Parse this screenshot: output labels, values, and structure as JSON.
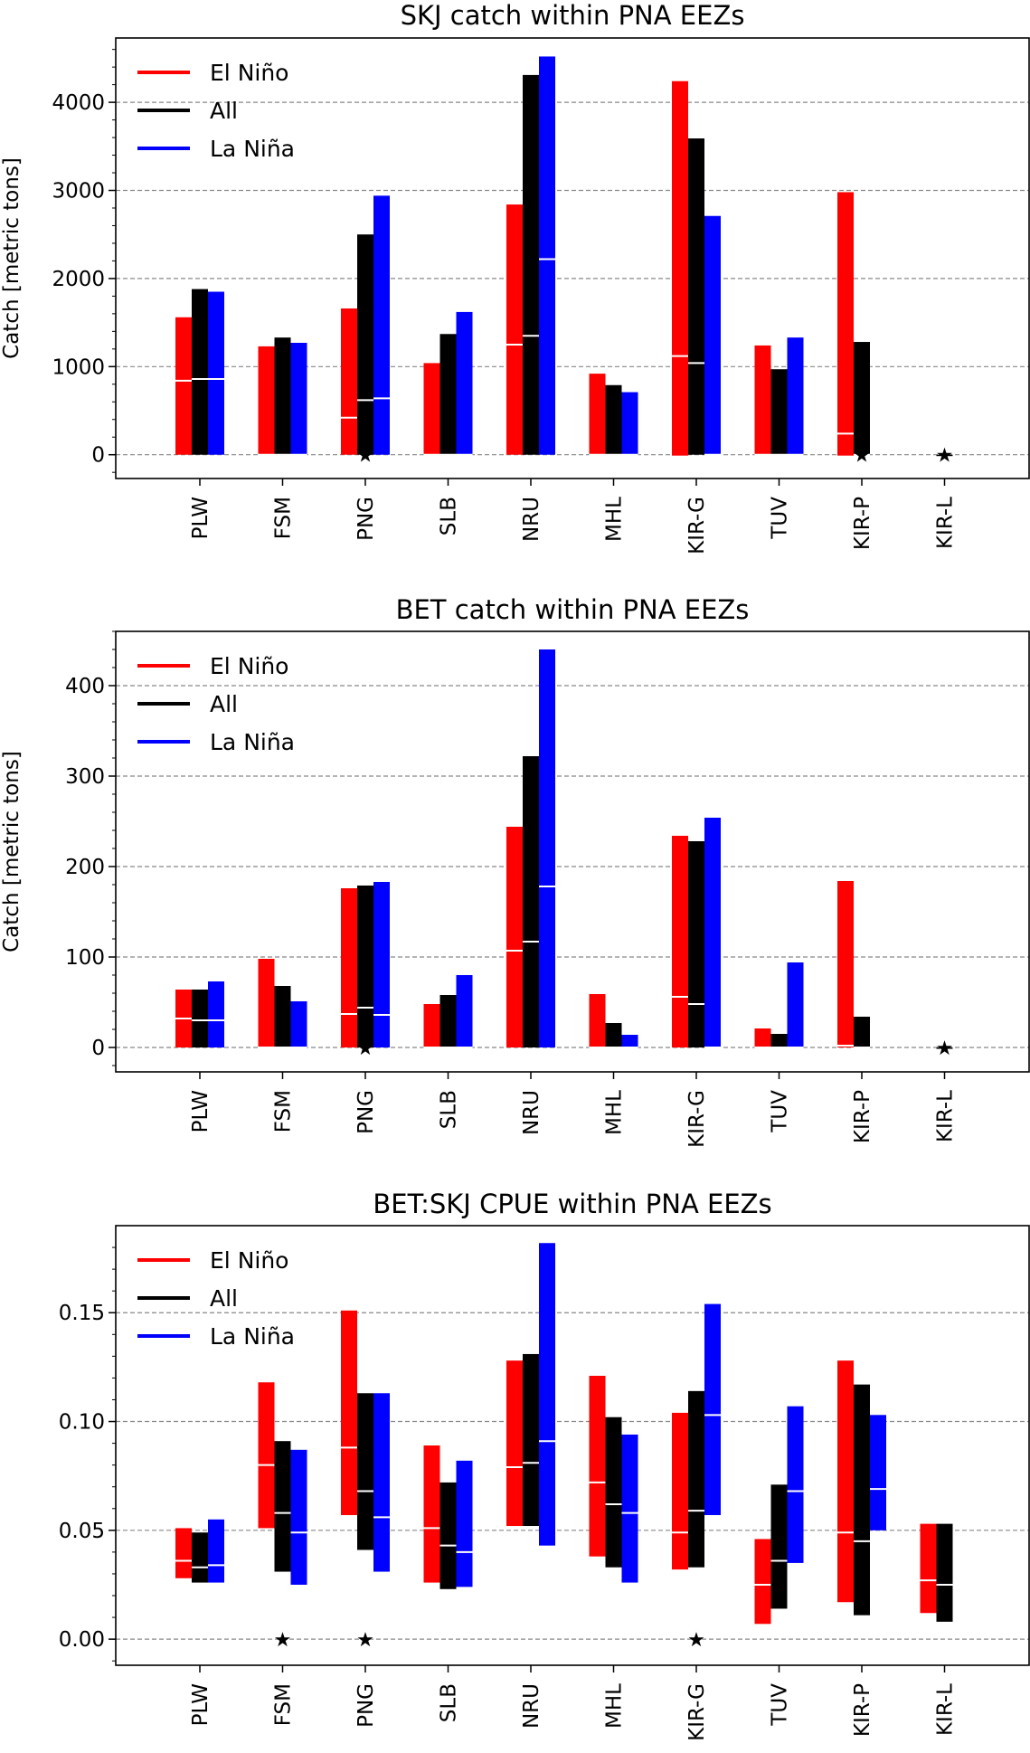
{
  "colors": {
    "elnino": "#ff0000",
    "all": "#000000",
    "lanina": "#0000ff"
  },
  "legend": [
    "El Niño",
    "All",
    "La Niña"
  ],
  "chart_data": [
    {
      "type": "bar",
      "title": "SKJ catch within PNA EEZs",
      "ylabel": "Catch [metric tons]",
      "ylim": [
        -270,
        4730
      ],
      "yticks": [
        0,
        1000,
        2000,
        3000,
        4000
      ],
      "grid": true,
      "legend_position": "upper-left",
      "categories": [
        "PLW",
        "FSM",
        "PNG",
        "SLB",
        "NRU",
        "MHL",
        "KIR-G",
        "TUV",
        "KIR-P",
        "KIR-L"
      ],
      "series": [
        {
          "name": "El Niño",
          "color": "#ff0000",
          "low": [
            0,
            0,
            0,
            0,
            0,
            0,
            -10,
            0,
            -10,
            null
          ],
          "high": [
            1560,
            1230,
            1660,
            1040,
            2840,
            920,
            4240,
            1240,
            2980,
            null
          ],
          "median": [
            840,
            0,
            420,
            0,
            1250,
            0,
            1120,
            0,
            240,
            null
          ]
        },
        {
          "name": "All",
          "color": "#000000",
          "low": [
            0,
            0,
            0,
            0,
            0,
            0,
            0,
            0,
            0,
            0
          ],
          "high": [
            1880,
            1330,
            2500,
            1370,
            4310,
            790,
            3590,
            970,
            1280,
            0
          ],
          "median": [
            860,
            0,
            620,
            0,
            1350,
            0,
            1040,
            0,
            0,
            0
          ]
        },
        {
          "name": "La Niña",
          "color": "#0000ff",
          "low": [
            0,
            0,
            0,
            0,
            0,
            0,
            0,
            0,
            null,
            null
          ],
          "high": [
            1850,
            1270,
            2940,
            1620,
            4520,
            710,
            2710,
            1330,
            null,
            null
          ],
          "median": [
            860,
            0,
            640,
            0,
            2220,
            0,
            0,
            0,
            null,
            null
          ]
        }
      ],
      "star_markers": [
        "PNG",
        "KIR-P",
        "KIR-L"
      ]
    },
    {
      "type": "bar",
      "title": "BET catch within PNA EEZs",
      "ylabel": "Catch [metric tons]",
      "ylim": [
        -27,
        460
      ],
      "yticks": [
        0,
        100,
        200,
        300,
        400
      ],
      "grid": true,
      "legend_position": "upper-left",
      "categories": [
        "PLW",
        "FSM",
        "PNG",
        "SLB",
        "NRU",
        "MHL",
        "KIR-G",
        "TUV",
        "KIR-P",
        "KIR-L"
      ],
      "series": [
        {
          "name": "El Niño",
          "color": "#ff0000",
          "low": [
            0,
            0,
            0,
            0,
            0,
            0,
            0,
            0,
            0,
            null
          ],
          "high": [
            64,
            98,
            176,
            48,
            244,
            59,
            234,
            21,
            184,
            null
          ],
          "median": [
            32,
            0,
            37,
            0,
            107,
            0,
            56,
            0,
            2,
            null
          ]
        },
        {
          "name": "All",
          "color": "#000000",
          "low": [
            0,
            0,
            0,
            0,
            0,
            0,
            0,
            0,
            0,
            0
          ],
          "high": [
            64,
            68,
            179,
            58,
            322,
            27,
            228,
            15,
            34,
            0
          ],
          "median": [
            30,
            0,
            44,
            0,
            117,
            0,
            48,
            0,
            0,
            0
          ]
        },
        {
          "name": "La Niña",
          "color": "#0000ff",
          "low": [
            0,
            0,
            0,
            0,
            0,
            0,
            0,
            0,
            null,
            null
          ],
          "high": [
            73,
            51,
            183,
            80,
            440,
            14,
            254,
            94,
            null,
            null
          ],
          "median": [
            30,
            0,
            36,
            0,
            178,
            0,
            0,
            0,
            null,
            null
          ]
        }
      ],
      "star_markers": [
        "PNG",
        "KIR-L"
      ]
    },
    {
      "type": "bar",
      "title": "BET:SKJ CPUE within PNA EEZs",
      "ylabel": "",
      "ylim": [
        -0.012,
        0.19
      ],
      "yticks": [
        0.0,
        0.05,
        0.1,
        0.15
      ],
      "ytick_labels": [
        "0.00",
        "0.05",
        "0.10",
        "0.15"
      ],
      "grid": true,
      "legend_position": "upper-left",
      "categories": [
        "PLW",
        "FSM",
        "PNG",
        "SLB",
        "NRU",
        "MHL",
        "KIR-G",
        "TUV",
        "KIR-P",
        "KIR-L"
      ],
      "series": [
        {
          "name": "El Niño",
          "color": "#ff0000",
          "low": [
            0.028,
            0.051,
            0.057,
            0.026,
            0.052,
            0.038,
            0.032,
            0.007,
            0.017,
            0.012
          ],
          "high": [
            0.051,
            0.118,
            0.151,
            0.089,
            0.128,
            0.121,
            0.104,
            0.046,
            0.128,
            0.053
          ],
          "median": [
            0.036,
            0.08,
            0.088,
            0.051,
            0.079,
            0.072,
            0.049,
            0.025,
            0.049,
            0.027
          ]
        },
        {
          "name": "All",
          "color": "#000000",
          "low": [
            0.026,
            0.031,
            0.041,
            0.023,
            0.052,
            0.033,
            0.033,
            0.014,
            0.011,
            0.008
          ],
          "high": [
            0.049,
            0.091,
            0.113,
            0.072,
            0.131,
            0.102,
            0.114,
            0.071,
            0.117,
            0.053
          ],
          "median": [
            0.033,
            0.058,
            0.068,
            0.043,
            0.081,
            0.062,
            0.059,
            0.036,
            0.045,
            0.025
          ]
        },
        {
          "name": "La Niña",
          "color": "#0000ff",
          "low": [
            0.026,
            0.025,
            0.031,
            0.024,
            0.043,
            0.026,
            0.057,
            0.035,
            0.05,
            null
          ],
          "high": [
            0.055,
            0.087,
            0.113,
            0.082,
            0.182,
            0.094,
            0.154,
            0.107,
            0.103,
            null
          ],
          "median": [
            0.034,
            0.049,
            0.056,
            0.04,
            0.091,
            0.058,
            0.103,
            0.068,
            0.069,
            null
          ]
        }
      ],
      "star_markers": [
        "FSM",
        "PNG",
        "KIR-G"
      ]
    }
  ]
}
